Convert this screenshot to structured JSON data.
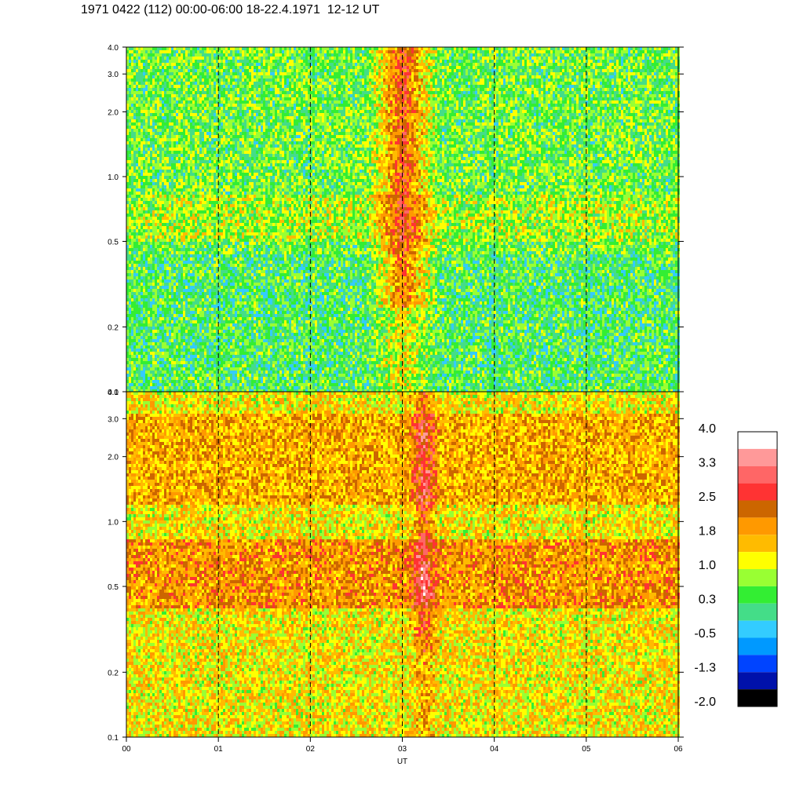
{
  "title": "1971 0422 (112) 00:00-06:00 18-22.4.1971  12-12 UT",
  "chart_data": {
    "type": "heatmap",
    "title": "1971 0422 (112) 00:00-06:00 18-22.4.1971  12-12 UT",
    "xlabel": "UT",
    "x_ticks": [
      "00",
      "01",
      "02",
      "03",
      "04",
      "05",
      "06"
    ],
    "xlim": [
      0,
      6
    ],
    "y_scale": "log",
    "ylim": [
      0.1,
      4.0
    ],
    "y_ticks": [
      "0.1",
      "0.2",
      "0.5",
      "1.0",
      "2.0",
      "3.0",
      "4.0"
    ],
    "y_tick_values": [
      0.1,
      0.2,
      0.5,
      1.0,
      2.0,
      3.0,
      4.0
    ],
    "hour_markers": [
      1,
      2,
      3,
      4,
      5
    ],
    "panels": [
      {
        "name": "upper",
        "background_level": 0.3,
        "event_start": 2.6,
        "event_end": 3.4,
        "event_peak_level": 2.5
      },
      {
        "name": "lower",
        "background_level": 1.2,
        "event_start": 3.05,
        "event_end": 3.4,
        "event_peak_level": 2.5
      }
    ],
    "colorbar": {
      "labels": [
        "4.0",
        "3.3",
        "2.5",
        "1.8",
        "1.0",
        "0.3",
        "-0.5",
        "-1.3",
        "-2.0"
      ],
      "colors": [
        "#ffffff",
        "#ff9999",
        "#ff6666",
        "#ff3333",
        "#cc6600",
        "#ff9900",
        "#ffbb00",
        "#ffff00",
        "#99ff33",
        "#33ee33",
        "#44dd88",
        "#33ccff",
        "#0099ff",
        "#0044ff",
        "#0011aa",
        "#000000"
      ]
    }
  }
}
